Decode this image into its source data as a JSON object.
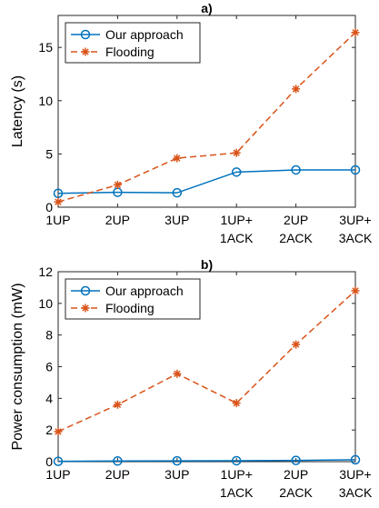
{
  "chart_data": [
    {
      "panel": "a",
      "type": "line",
      "title": "a)",
      "xlabel": "",
      "ylabel": "Latency (s)",
      "categories": [
        [
          "1UP"
        ],
        [
          "2UP"
        ],
        [
          "3UP"
        ],
        [
          "1UP+",
          "1ACK"
        ],
        [
          "2UP",
          "2ACK"
        ],
        [
          "3UP+",
          "3ACK"
        ]
      ],
      "ylim": [
        0,
        18
      ],
      "yticks": [
        0,
        5,
        10,
        15
      ],
      "grid": false,
      "legend_position": "top-left",
      "series": [
        {
          "name": "Our approach",
          "values": [
            1.3,
            1.4,
            1.35,
            3.3,
            3.5,
            3.5
          ],
          "color": "#0072BD",
          "marker": "circle",
          "line": "solid"
        },
        {
          "name": "Flooding",
          "values": [
            0.5,
            2.1,
            4.6,
            5.1,
            11.1,
            16.4
          ],
          "color": "#D95319",
          "marker": "asterisk",
          "line": "dashed"
        }
      ]
    },
    {
      "panel": "b",
      "type": "line",
      "title": "b)",
      "xlabel": "",
      "ylabel": "Power consumption (mW)",
      "categories": [
        [
          "1UP"
        ],
        [
          "2UP"
        ],
        [
          "3UP"
        ],
        [
          "1UP+",
          "1ACK"
        ],
        [
          "2UP",
          "2ACK"
        ],
        [
          "3UP+",
          "3ACK"
        ]
      ],
      "ylim": [
        0,
        12
      ],
      "yticks": [
        0,
        2,
        4,
        6,
        8,
        10,
        12
      ],
      "grid": false,
      "legend_position": "top-left",
      "series": [
        {
          "name": "Our approach",
          "values": [
            0.02,
            0.04,
            0.05,
            0.06,
            0.08,
            0.12
          ],
          "color": "#0072BD",
          "marker": "circle",
          "line": "solid"
        },
        {
          "name": "Flooding",
          "values": [
            1.9,
            3.6,
            5.55,
            3.7,
            7.4,
            10.8
          ],
          "color": "#D95319",
          "marker": "asterisk",
          "line": "dashed"
        }
      ]
    }
  ]
}
